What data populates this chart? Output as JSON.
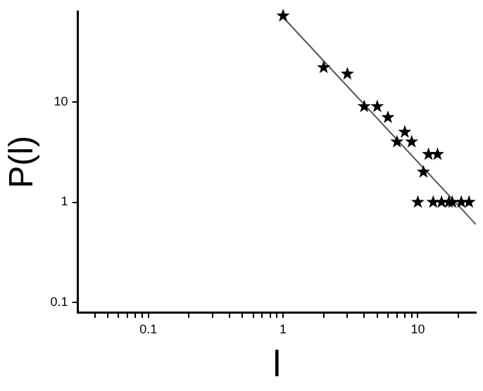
{
  "chart_data": {
    "type": "scatter",
    "xlabel": "l",
    "ylabel": "P(l)",
    "log": "xy",
    "marker": "star",
    "grid": false,
    "legend": false,
    "xlim": [
      0.03,
      27
    ],
    "ylim": [
      0.08,
      79
    ],
    "xticks": [
      {
        "value": 0.04,
        "label": null
      },
      {
        "value": 0.05,
        "label": null
      },
      {
        "value": 0.06,
        "label": null
      },
      {
        "value": 0.07,
        "label": null
      },
      {
        "value": 0.08,
        "label": null
      },
      {
        "value": 0.09,
        "label": null
      },
      0.1,
      {
        "value": 0.2,
        "label": null
      },
      {
        "value": 0.3,
        "label": null
      },
      {
        "value": 0.4,
        "label": null
      },
      {
        "value": 0.5,
        "label": null
      },
      {
        "value": 0.6,
        "label": null
      },
      {
        "value": 0.7,
        "label": null
      },
      {
        "value": 0.8,
        "label": null
      },
      {
        "value": 0.9,
        "label": null
      },
      1,
      {
        "value": 2,
        "label": null
      },
      {
        "value": 3,
        "label": null
      },
      {
        "value": 4,
        "label": null
      },
      {
        "value": 5,
        "label": null
      },
      {
        "value": 6,
        "label": null
      },
      {
        "value": 7,
        "label": null
      },
      {
        "value": 8,
        "label": null
      },
      {
        "value": 9,
        "label": null
      },
      10,
      {
        "value": 20,
        "label": null
      }
    ],
    "yticks": [
      0.1,
      1,
      10
    ],
    "series": [
      {
        "color": "#000000",
        "x": [
          1,
          2,
          3,
          4,
          5,
          6,
          7,
          8,
          9,
          10,
          11,
          12,
          13,
          14,
          15,
          17,
          18,
          21,
          24
        ],
        "values": [
          72,
          22,
          19,
          9,
          9,
          7,
          4,
          5,
          4,
          1,
          2,
          3,
          1,
          3,
          1,
          1,
          1,
          1,
          1
        ]
      },
      {
        "type": "line",
        "color": "#555555",
        "marker": "none",
        "x": [
          0.95,
          27
        ],
        "values": [
          75,
          0.6
        ]
      }
    ]
  }
}
